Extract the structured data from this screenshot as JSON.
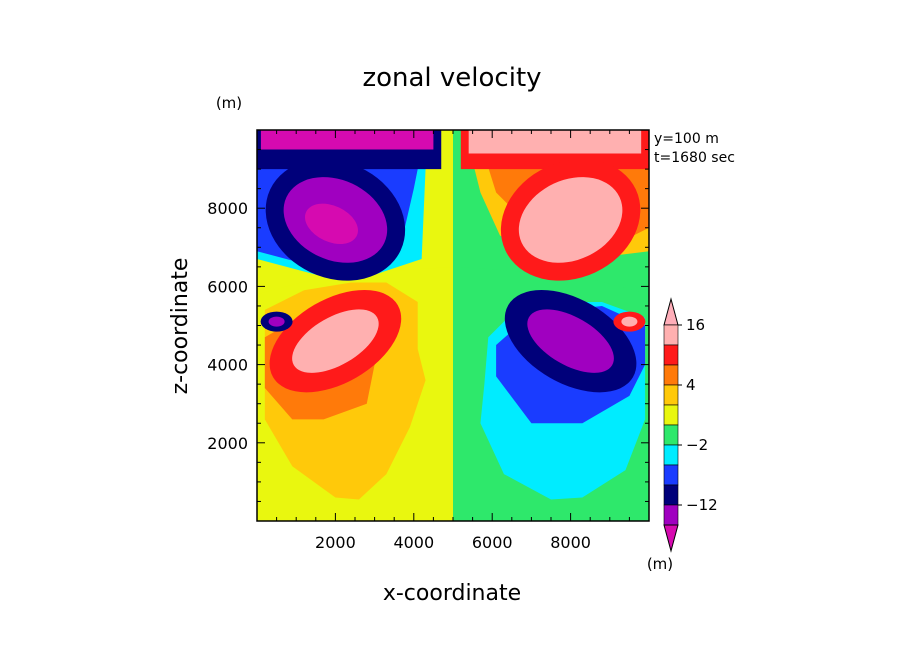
{
  "chart_data": {
    "type": "heatmap",
    "title": "zonal velocity",
    "xlabel": "x-coordinate",
    "ylabel": "z-coordinate",
    "y_unit": "(m)",
    "colorbar_unit": "(m)",
    "annotations": [
      "y=100 m",
      "t=1680 sec"
    ],
    "xlim": [
      0,
      10000
    ],
    "ylim": [
      0,
      10000
    ],
    "x_ticks": [
      2000,
      4000,
      6000,
      8000
    ],
    "y_ticks": [
      2000,
      4000,
      6000,
      8000
    ],
    "colorbar": {
      "levels": [
        -16,
        -12,
        -8,
        -4,
        -2,
        0,
        2,
        4,
        8,
        12,
        16
      ],
      "labeled_levels": [
        16,
        4,
        -2,
        -12
      ],
      "extend": "both",
      "colors": [
        "#d60ab0",
        "#a000c0",
        "#00007a",
        "#1a3cff",
        "#00ecff",
        "#2ee86b",
        "#e9f70f",
        "#ffc90a",
        "#ff7a0a",
        "#ff1a1a",
        "#ffb0b0",
        "#ffaeb9"
      ]
    },
    "fill_features": [
      {
        "value_level": 16,
        "desc": "positive max near top right",
        "cx": 7200,
        "cy": 9800
      },
      {
        "value_level": -16,
        "desc": "negative max near top left",
        "cx": 2700,
        "cy": 9800
      },
      {
        "value_level": -16,
        "desc": "negative core upper left",
        "cx": 1900,
        "cy": 7600
      },
      {
        "value_level": 16,
        "desc": "positive core upper right",
        "cx": 8100,
        "cy": 7600
      },
      {
        "value_level": 16,
        "desc": "positive core lower left",
        "cx": 1800,
        "cy": 4600
      },
      {
        "value_level": -16,
        "desc": "negative core lower right",
        "cx": 8200,
        "cy": 4600
      },
      {
        "value_level": -12,
        "desc": "small negative eddy left",
        "cx": 500,
        "cy": 5100
      },
      {
        "value_level": 12,
        "desc": "small positive eddy right",
        "cx": 9500,
        "cy": 5100
      }
    ]
  }
}
